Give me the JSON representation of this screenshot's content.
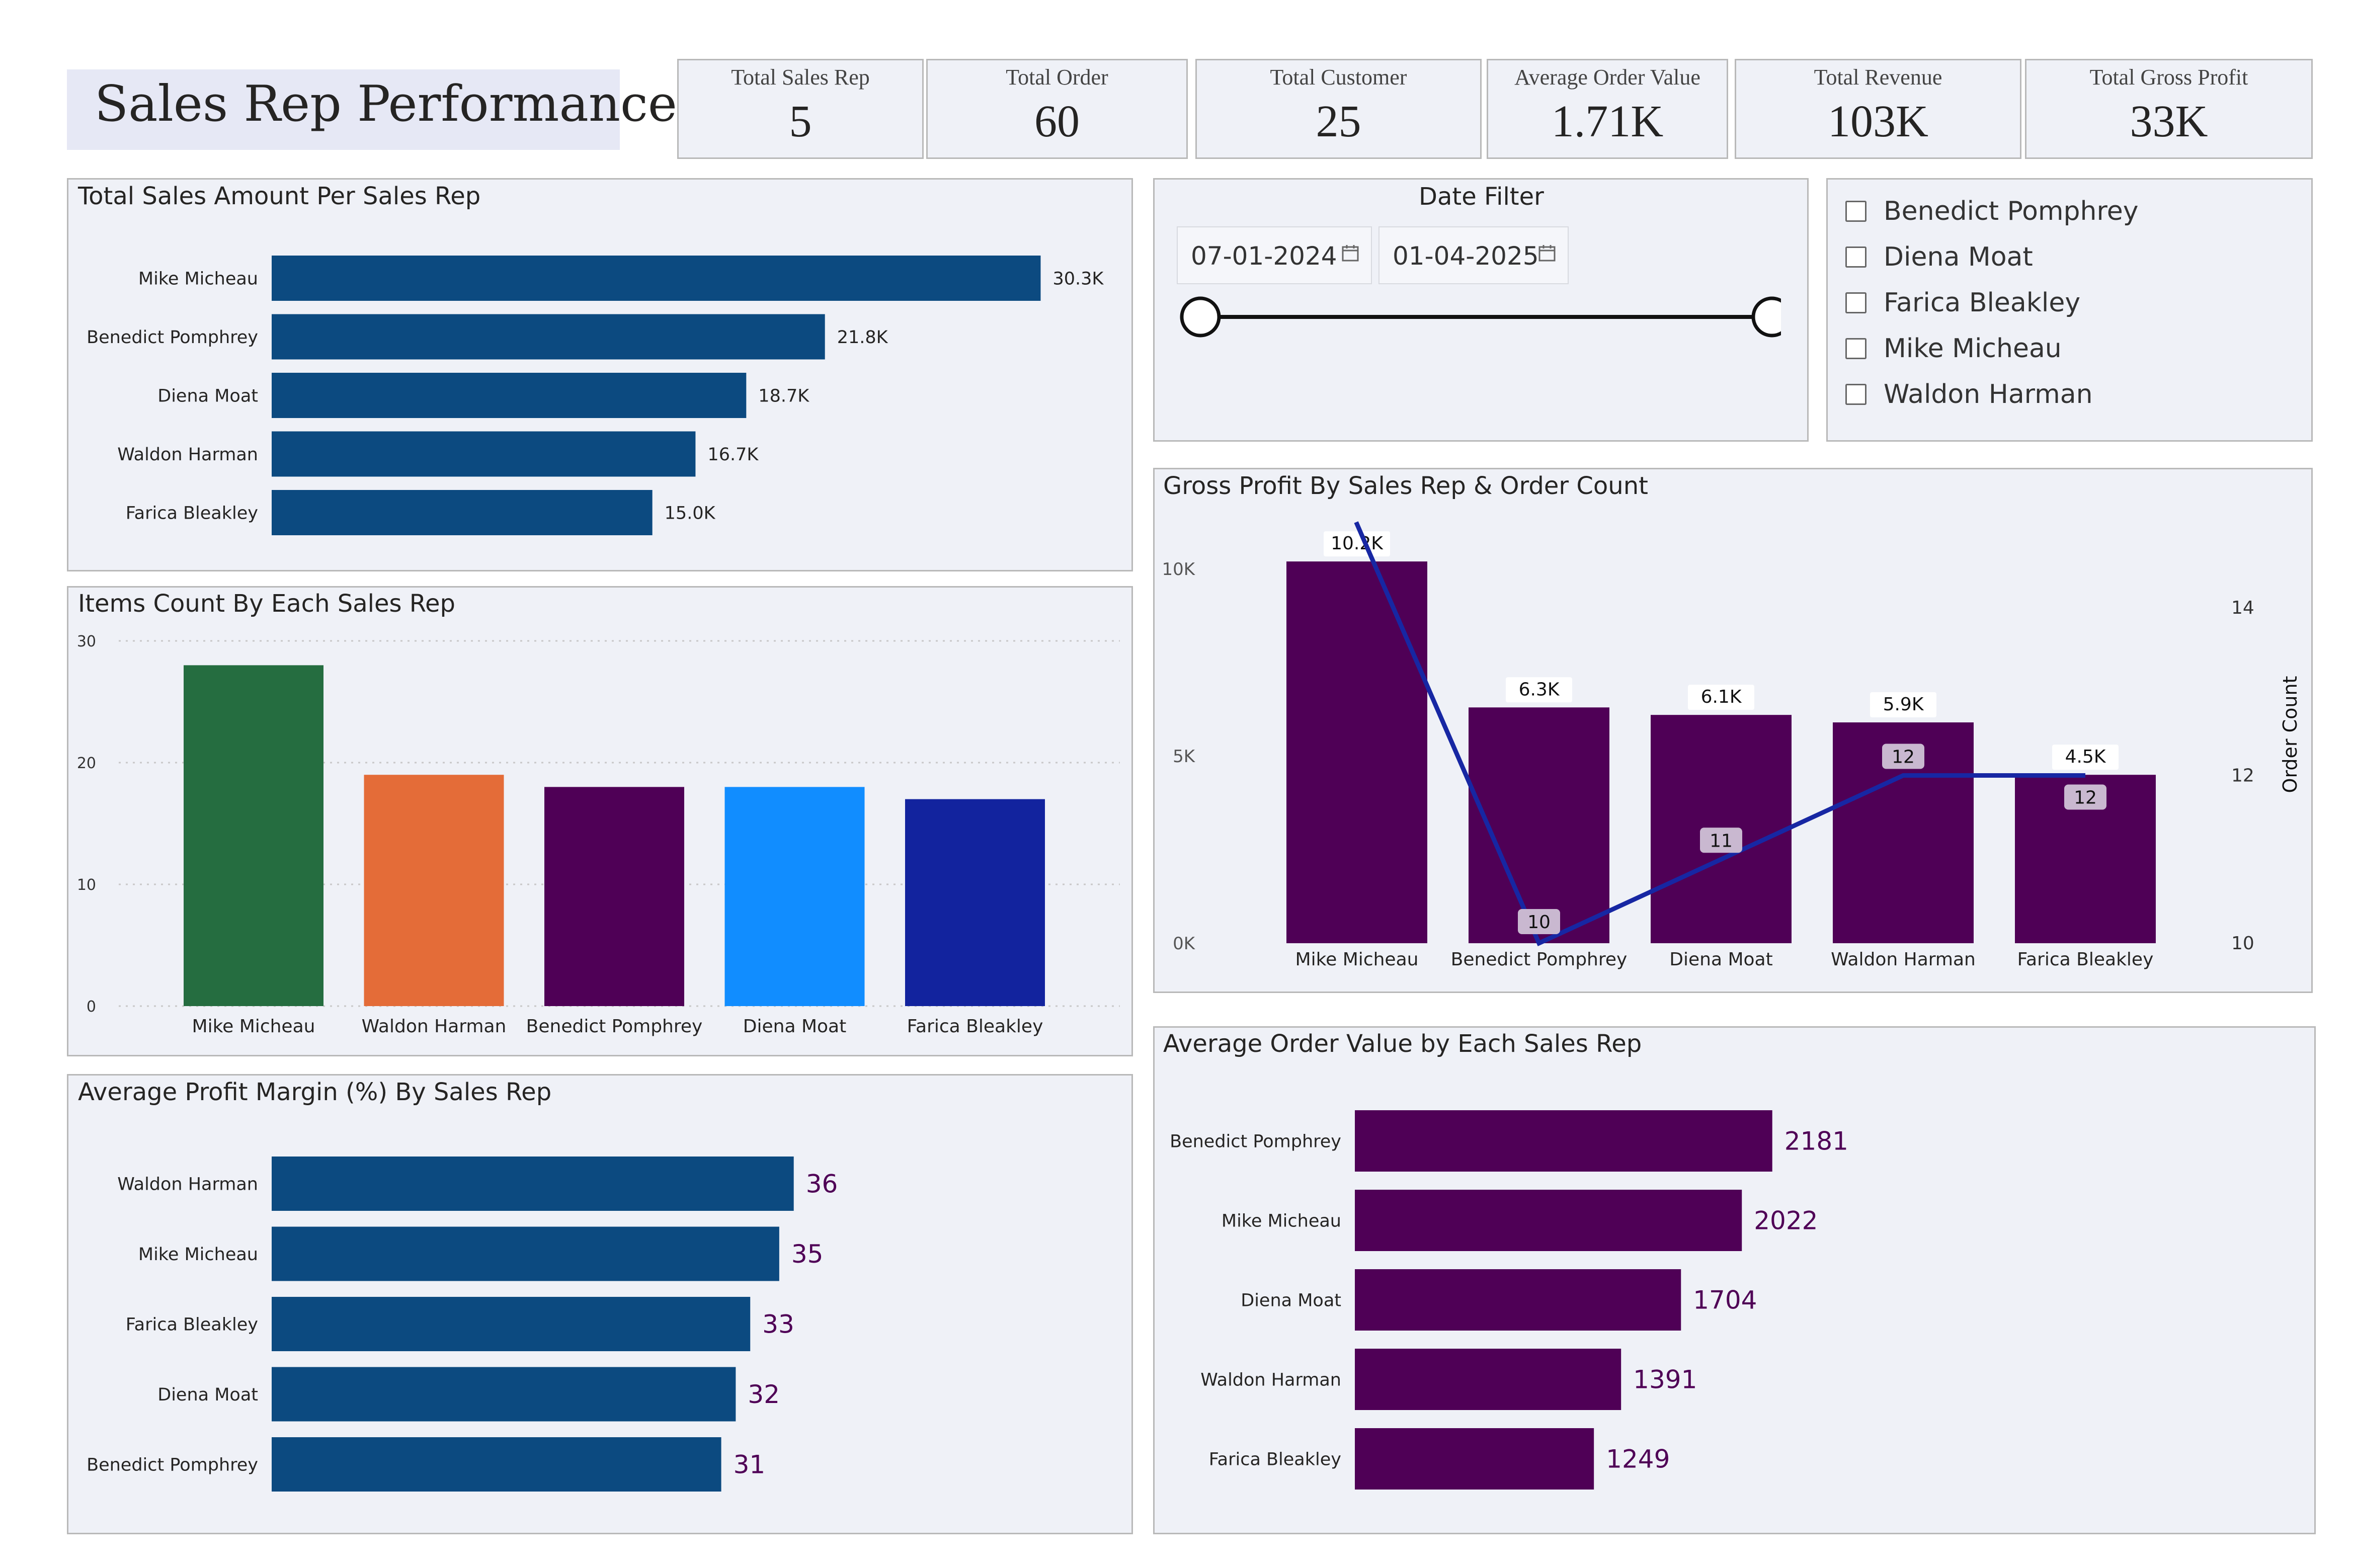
{
  "page_title": "Sales Rep Performance",
  "kpis": [
    {
      "label": "Total Sales Rep",
      "value": "5"
    },
    {
      "label": "Total Order",
      "value": "60"
    },
    {
      "label": "Total Customer",
      "value": "25"
    },
    {
      "label": "Average Order Value",
      "value": "1.71K"
    },
    {
      "label": "Total Revenue",
      "value": "103K"
    },
    {
      "label": "Total Gross Profit",
      "value": "33K"
    }
  ],
  "date_filter": {
    "title": "Date Filter",
    "start": "07-01-2024",
    "end": "01-04-2025",
    "calendar_icon": "calendar-icon"
  },
  "rep_slicer": {
    "items": [
      "Benedict Pomphrey",
      "Diena Moat",
      "Farica Bleakley",
      "Mike Micheau",
      "Waldon Harman"
    ]
  },
  "colors": {
    "bar_blue": "#0c4a80",
    "bar_purple": "#4f0056",
    "line_navy": "#1727a3",
    "panel_bg": "#eff1f7"
  },
  "chart_data": [
    {
      "id": "sales",
      "type": "bar",
      "orientation": "horizontal",
      "title": "Total Sales Amount Per Sales Rep",
      "categories": [
        "Mike Micheau",
        "Benedict Pomphrey",
        "Diena Moat",
        "Waldon Harman",
        "Farica Bleakley"
      ],
      "values": [
        30.3,
        21.8,
        18.7,
        16.7,
        15.0
      ],
      "data_labels": [
        "30.3K",
        "21.8K",
        "18.7K",
        "16.7K",
        "15.0K"
      ],
      "unit": "K",
      "xlim": [
        0,
        36
      ]
    },
    {
      "id": "items",
      "type": "bar",
      "orientation": "vertical",
      "title": "Items Count By Each Sales Rep",
      "categories": [
        "Mike Micheau",
        "Waldon Harman",
        "Benedict Pomphrey",
        "Diena Moat",
        "Farica Bleakley"
      ],
      "values": [
        28,
        19,
        18,
        18,
        17
      ],
      "bar_colors": [
        "#256d40",
        "#e46c38",
        "#4f0056",
        "#118dff",
        "#12239e"
      ],
      "ylim": [
        0,
        30
      ],
      "yticks": [
        0,
        10,
        20,
        30
      ],
      "grid": true
    },
    {
      "id": "margin",
      "type": "bar",
      "orientation": "horizontal",
      "title": "Average Profit Margin (%) By Sales Rep",
      "categories": [
        "Waldon Harman",
        "Mike Micheau",
        "Farica Bleakley",
        "Diena Moat",
        "Benedict Pomphrey"
      ],
      "values": [
        36,
        35,
        33,
        32,
        31
      ],
      "data_labels": [
        "36",
        "35",
        "33",
        "32",
        "31"
      ],
      "xlim": [
        0,
        40
      ]
    },
    {
      "id": "gross",
      "type": "bar",
      "title": "Gross Profit By Sales Rep & Order Count",
      "categories": [
        "Mike Micheau",
        "Benedict Pomphrey",
        "Diena Moat",
        "Waldon Harman",
        "Farica Bleakley"
      ],
      "series": [
        {
          "name": "Gross Profit",
          "type": "bar",
          "values": [
            10.2,
            6.3,
            6.1,
            5.9,
            4.5
          ],
          "data_labels": [
            "10.2K",
            "6.3K",
            "6.1K",
            "5.9K",
            "4.5K"
          ],
          "unit": "K"
        },
        {
          "name": "Order Count",
          "type": "line",
          "axis": "right",
          "values": [
            15,
            10,
            11,
            12,
            12
          ],
          "data_labels": [
            "",
            "10",
            "11",
            "12",
            "12"
          ]
        }
      ],
      "ylim": [
        0,
        12
      ],
      "yticks": [
        0,
        5,
        10
      ],
      "ytick_labels": [
        "0K",
        "5K",
        "10K"
      ],
      "y2lim": [
        10,
        15
      ],
      "y2ticks": [
        10,
        12,
        14
      ],
      "y2label": "Order Count"
    },
    {
      "id": "aov",
      "type": "bar",
      "orientation": "horizontal",
      "title": "Average Order Value by Each Sales Rep",
      "categories": [
        "Benedict Pomphrey",
        "Mike Micheau",
        "Diena Moat",
        "Waldon Harman",
        "Farica Bleakley"
      ],
      "values": [
        2181,
        2022,
        1704,
        1391,
        1249
      ],
      "data_labels": [
        "2181",
        "2022",
        "1704",
        "1391",
        "1249"
      ],
      "xlim": [
        0,
        2300
      ]
    }
  ]
}
